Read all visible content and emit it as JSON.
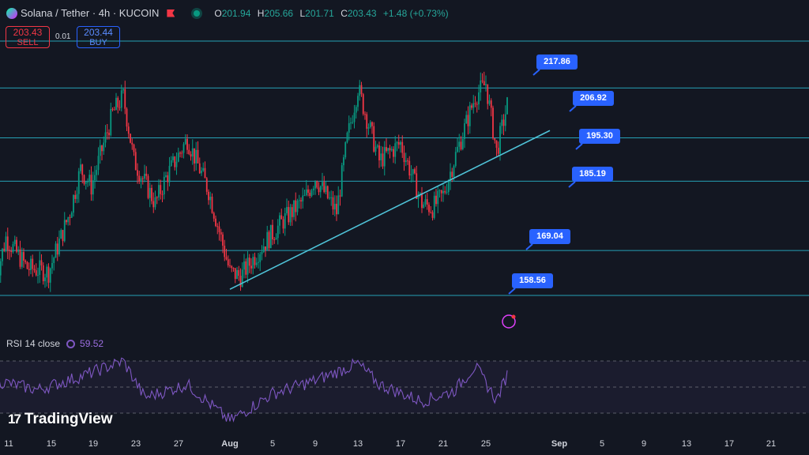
{
  "header": {
    "symbol": "Solana / Tether · 4h · KUCOIN",
    "ohlc": [
      {
        "key": "O",
        "value": "201.94"
      },
      {
        "key": "H",
        "value": "205.66"
      },
      {
        "key": "L",
        "value": "201.71"
      },
      {
        "key": "C",
        "value": "203.43"
      },
      {
        "key": "",
        "value": "+1.48 (+0.73%)"
      }
    ]
  },
  "trade": {
    "sell_price": "203.43",
    "sell_label": "SELL",
    "spread": "0.01",
    "buy_price": "203.44",
    "buy_label": "BUY"
  },
  "rsi": {
    "label": "RSI 14 close",
    "value": "59.52",
    "levels": [
      70,
      50,
      30
    ]
  },
  "brand": {
    "name": "TradingView"
  },
  "colors": {
    "background": "#131722",
    "up": "#089981",
    "down": "#f23645",
    "level": "#26a0b5",
    "trendline": "#4fc3d8",
    "rsi": "#7e57c2",
    "label": "#2962ff"
  },
  "chart_data": {
    "type": "candlestick",
    "timeframe": "4h",
    "x_ticks": [
      "11",
      "15",
      "19",
      "23",
      "27",
      "Aug",
      "5",
      "9",
      "13",
      "17",
      "21",
      "25",
      "Sep",
      "5",
      "9",
      "13",
      "17",
      "21"
    ],
    "y_range": [
      140,
      230
    ],
    "levels": [
      "217.86",
      "206.92",
      "195.30",
      "185.19",
      "169.04",
      "158.56"
    ],
    "trendline": {
      "from": {
        "date": "Aug 1",
        "price": 160
      },
      "to": {
        "date": "Aug 31",
        "price": 197
      }
    },
    "close_path": [
      {
        "date": "Jul 10",
        "close": 162
      },
      {
        "date": "Jul 11",
        "close": 172
      },
      {
        "date": "Jul 13",
        "close": 165
      },
      {
        "date": "Jul 15",
        "close": 164
      },
      {
        "date": "Jul 17",
        "close": 178
      },
      {
        "date": "Jul 18",
        "close": 188
      },
      {
        "date": "Jul 19",
        "close": 184
      },
      {
        "date": "Jul 21",
        "close": 201
      },
      {
        "date": "Jul 22",
        "close": 205
      },
      {
        "date": "Jul 23",
        "close": 190
      },
      {
        "date": "Jul 25",
        "close": 180
      },
      {
        "date": "Jul 26",
        "close": 186
      },
      {
        "date": "Jul 28",
        "close": 195
      },
      {
        "date": "Jul 30",
        "close": 183
      },
      {
        "date": "Aug 1",
        "close": 164
      },
      {
        "date": "Aug 2",
        "close": 163
      },
      {
        "date": "Aug 4",
        "close": 170
      },
      {
        "date": "Aug 6",
        "close": 176
      },
      {
        "date": "Aug 8",
        "close": 181
      },
      {
        "date": "Aug 9",
        "close": 186
      },
      {
        "date": "Aug 11",
        "close": 178
      },
      {
        "date": "Aug 12",
        "close": 195
      },
      {
        "date": "Aug 13",
        "close": 207
      },
      {
        "date": "Aug 15",
        "close": 190
      },
      {
        "date": "Aug 17",
        "close": 194
      },
      {
        "date": "Aug 19",
        "close": 180
      },
      {
        "date": "Aug 20",
        "close": 179
      },
      {
        "date": "Aug 21",
        "close": 182
      },
      {
        "date": "Aug 22",
        "close": 190
      },
      {
        "date": "Aug 24",
        "close": 205
      },
      {
        "date": "Aug 25",
        "close": 208
      },
      {
        "date": "Aug 26",
        "close": 192
      },
      {
        "date": "Aug 27",
        "close": 203
      }
    ],
    "rsi_path": [
      {
        "date": "Jul 10",
        "rsi": 55
      },
      {
        "date": "Jul 14",
        "rsi": 48
      },
      {
        "date": "Jul 18",
        "rsi": 58
      },
      {
        "date": "Jul 22",
        "rsi": 70
      },
      {
        "date": "Jul 24",
        "rsi": 42
      },
      {
        "date": "Jul 28",
        "rsi": 52
      },
      {
        "date": "Aug 1",
        "rsi": 24
      },
      {
        "date": "Aug 5",
        "rsi": 45
      },
      {
        "date": "Aug 9",
        "rsi": 55
      },
      {
        "date": "Aug 13",
        "rsi": 68
      },
      {
        "date": "Aug 15",
        "rsi": 52
      },
      {
        "date": "Aug 19",
        "rsi": 39
      },
      {
        "date": "Aug 22",
        "rsi": 47
      },
      {
        "date": "Aug 24",
        "rsi": 66
      },
      {
        "date": "Aug 26",
        "rsi": 40
      },
      {
        "date": "Aug 27",
        "rsi": 59.52
      }
    ]
  }
}
